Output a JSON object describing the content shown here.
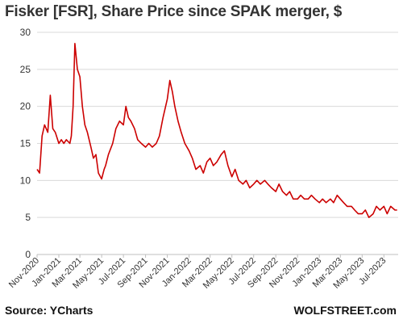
{
  "title": "Fisker  [FSR], Share Price since SPAK merger, $",
  "source": "Source: YCharts",
  "brand": "WOLFSTREET.com",
  "chart_data": {
    "type": "line",
    "title": "Fisker  [FSR], Share Price since SPAK merger, $",
    "xlabel": "",
    "ylabel": "",
    "ylim": [
      0,
      30
    ],
    "yticks": [
      0,
      5,
      10,
      15,
      20,
      25,
      30
    ],
    "grid": "horizontal",
    "line_color": "#cc0000",
    "x_tick_labels": [
      "Nov-2020",
      "Jan-2021",
      "Mar-2021",
      "May-2021",
      "Jul-2021",
      "Sep-2021",
      "Nov-2021",
      "Jan-2022",
      "Mar-2022",
      "May-2022",
      "Jul-2022",
      "Sep-2022",
      "Nov-2022",
      "Jan-2023",
      "Mar-2023",
      "May-2023",
      "Jul-2023"
    ],
    "x": [
      "2020-11-01",
      "2020-11-08",
      "2020-11-15",
      "2020-11-22",
      "2020-12-01",
      "2020-12-08",
      "2020-12-15",
      "2020-12-22",
      "2021-01-01",
      "2021-01-08",
      "2021-01-15",
      "2021-01-22",
      "2021-02-01",
      "2021-02-05",
      "2021-02-10",
      "2021-02-15",
      "2021-02-22",
      "2021-03-01",
      "2021-03-08",
      "2021-03-15",
      "2021-03-22",
      "2021-04-01",
      "2021-04-08",
      "2021-04-15",
      "2021-04-22",
      "2021-05-01",
      "2021-05-08",
      "2021-05-12",
      "2021-05-20",
      "2021-06-01",
      "2021-06-10",
      "2021-06-20",
      "2021-07-01",
      "2021-07-08",
      "2021-07-15",
      "2021-07-22",
      "2021-08-01",
      "2021-08-10",
      "2021-08-20",
      "2021-09-01",
      "2021-09-10",
      "2021-09-20",
      "2021-10-01",
      "2021-10-10",
      "2021-10-20",
      "2021-11-01",
      "2021-11-08",
      "2021-11-15",
      "2021-11-22",
      "2021-12-01",
      "2021-12-10",
      "2021-12-20",
      "2022-01-01",
      "2022-01-10",
      "2022-01-20",
      "2022-02-01",
      "2022-02-10",
      "2022-02-20",
      "2022-03-01",
      "2022-03-10",
      "2022-03-20",
      "2022-04-01",
      "2022-04-10",
      "2022-04-20",
      "2022-05-01",
      "2022-05-10",
      "2022-05-20",
      "2022-06-01",
      "2022-06-10",
      "2022-06-20",
      "2022-07-01",
      "2022-07-10",
      "2022-07-20",
      "2022-08-01",
      "2022-08-10",
      "2022-08-20",
      "2022-09-01",
      "2022-09-10",
      "2022-09-20",
      "2022-10-01",
      "2022-10-10",
      "2022-10-20",
      "2022-11-01",
      "2022-11-10",
      "2022-11-20",
      "2022-12-01",
      "2022-12-10",
      "2022-12-20",
      "2023-01-01",
      "2023-01-10",
      "2023-01-20",
      "2023-02-01",
      "2023-02-10",
      "2023-02-20",
      "2023-03-01",
      "2023-03-10",
      "2023-03-20",
      "2023-04-01",
      "2023-04-10",
      "2023-04-20",
      "2023-05-01",
      "2023-05-10",
      "2023-05-20",
      "2023-06-01",
      "2023-06-10",
      "2023-06-20",
      "2023-07-01",
      "2023-07-10",
      "2023-07-20",
      "2023-08-01",
      "2023-08-07"
    ],
    "series": [
      {
        "values": [
          11.5,
          11.0,
          16.0,
          17.5,
          16.5,
          21.5,
          17.0,
          16.5,
          15.0,
          15.5,
          15.0,
          15.5,
          15.0,
          16.0,
          20.0,
          28.5,
          25.0,
          24.0,
          20.0,
          17.5,
          16.5,
          14.5,
          13.0,
          13.5,
          11.0,
          10.2,
          11.5,
          12.0,
          13.5,
          15.0,
          17.0,
          18.0,
          17.5,
          20.0,
          18.5,
          18.0,
          17.0,
          15.5,
          15.0,
          14.5,
          15.0,
          14.5,
          15.0,
          16.0,
          18.5,
          21.0,
          23.5,
          22.0,
          20.0,
          18.0,
          16.5,
          15.0,
          14.0,
          13.0,
          11.5,
          12.0,
          11.0,
          12.5,
          13.0,
          12.0,
          12.5,
          13.5,
          14.0,
          12.0,
          10.5,
          11.5,
          10.0,
          9.5,
          10.0,
          9.0,
          9.5,
          10.0,
          9.5,
          10.0,
          9.5,
          9.0,
          8.5,
          9.5,
          8.5,
          8.0,
          8.5,
          7.5,
          7.5,
          8.0,
          7.5,
          7.5,
          8.0,
          7.5,
          7.0,
          7.5,
          7.0,
          7.5,
          7.0,
          8.0,
          7.5,
          7.0,
          6.5,
          6.5,
          6.0,
          5.5,
          5.5,
          6.0,
          5.0,
          5.5,
          6.5,
          6.0,
          6.5,
          5.5,
          6.5,
          6.0,
          6.0
        ]
      }
    ]
  }
}
